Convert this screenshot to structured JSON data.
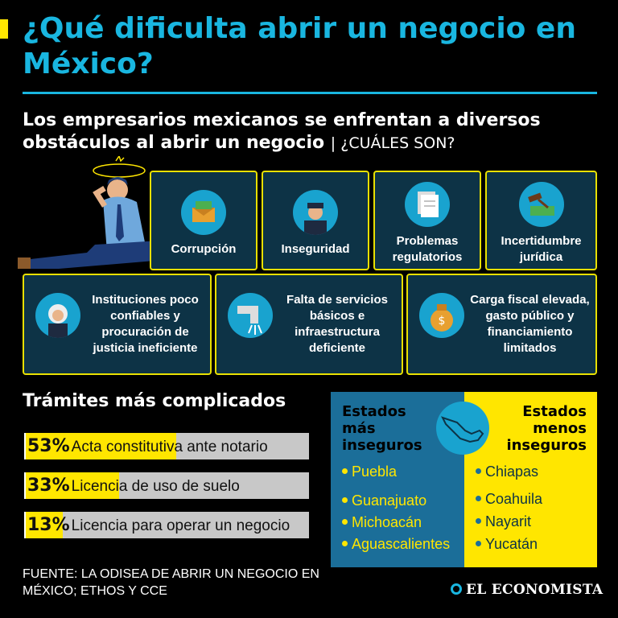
{
  "header": {
    "title": "¿Qué dificulta abrir un negocio en México?",
    "accent_color": "#ffe600",
    "title_color": "#19b6e0"
  },
  "subtitle": {
    "main": "Los empresarios mexicanos se enfrentan a diversos obstáculos al abrir un negocio",
    "separator": "|",
    "question": "¿CUÁLES SON?"
  },
  "obstacles": [
    {
      "label": "Corrupción",
      "icon": "money-envelope-icon"
    },
    {
      "label": "Inseguridad",
      "icon": "police-officer-icon"
    },
    {
      "label": "Problemas regulatorios",
      "icon": "documents-icon"
    },
    {
      "label": "Incertidumbre jurídica",
      "icon": "gavel-money-icon"
    },
    {
      "label": "Instituciones poco confiables y procuración de justicia ineficiente",
      "icon": "judge-icon"
    },
    {
      "label": "Falta de servicios básicos e infraestructura deficiente",
      "icon": "water-pipe-icon"
    },
    {
      "label": "Carga fiscal elevada, gasto público y financiamiento limitados",
      "icon": "money-bag-icon"
    }
  ],
  "tramites": {
    "title": "Trámites más complicados",
    "items": [
      {
        "pct_label": "53%",
        "value": 53,
        "label": "Acta constitutiva ante notario"
      },
      {
        "pct_label": "33%",
        "value": 33,
        "label": "Licencia de uso de suelo"
      },
      {
        "pct_label": "13%",
        "value": 13,
        "label": "Licencia para operar un negocio"
      }
    ]
  },
  "states": {
    "insecure_title": "Estados más inseguros",
    "insecure": [
      "Puebla",
      "Guanajuato",
      "Michoacán",
      "Aguascalientes"
    ],
    "safe_title": "Estados menos inseguros",
    "safe": [
      "Chiapas",
      "Coahuila",
      "Nayarit",
      "Yucatán"
    ],
    "insecure_bg": "#1b6e99",
    "safe_bg": "#ffe600",
    "map_icon": "mexico-map-icon"
  },
  "footer": {
    "source": "FUENTE: LA ODISEA DE ABRIR UN NEGOCIO EN MÉXICO; ETHOS Y CCE",
    "brand": "EL ECONOMISTA"
  }
}
